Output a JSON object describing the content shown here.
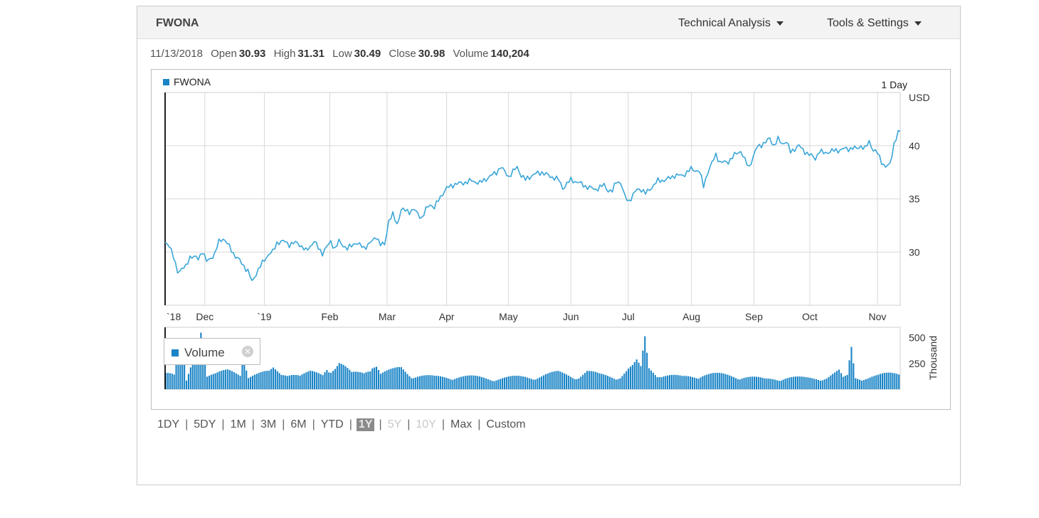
{
  "header": {
    "ticker": "FWONA",
    "menu_technical": "Technical Analysis",
    "menu_tools": "Tools & Settings"
  },
  "quote": {
    "date": "11/13/2018",
    "open_label": "Open",
    "open": "30.93",
    "high_label": "High",
    "high": "31.31",
    "low_label": "Low",
    "low": "30.49",
    "close_label": "Close",
    "close": "30.98",
    "volume_label": "Volume",
    "volume": "140,204"
  },
  "chart_data": {
    "type": "line",
    "legend": "FWONA",
    "interval_label": "1 Day",
    "y_unit_label": "USD",
    "ylim": [
      25,
      45
    ],
    "y_ticks": [
      "30",
      "35",
      "40"
    ],
    "x_tick_labels": [
      "`18",
      "Dec",
      "`19",
      "Feb",
      "Mar",
      "Apr",
      "May",
      "Jun",
      "Jul",
      "Aug",
      "Sep",
      "Oct",
      "Nov"
    ],
    "color": "#3aa6d8",
    "price_keypoints": [
      [
        0,
        30.9
      ],
      [
        2,
        30.7
      ],
      [
        4,
        29.5
      ],
      [
        6,
        28.2
      ],
      [
        10,
        28.6
      ],
      [
        12,
        29.6
      ],
      [
        16,
        29.4
      ],
      [
        18,
        30.1
      ],
      [
        20,
        29.1
      ],
      [
        24,
        29.8
      ],
      [
        26,
        31.0
      ],
      [
        28,
        31.3
      ],
      [
        30,
        30.8
      ],
      [
        34,
        29.6
      ],
      [
        36,
        29.2
      ],
      [
        40,
        28.2
      ],
      [
        42,
        27.2
      ],
      [
        44,
        28.0
      ],
      [
        48,
        29.3
      ],
      [
        50,
        29.8
      ],
      [
        52,
        30.0
      ],
      [
        54,
        30.9
      ],
      [
        58,
        31.0
      ],
      [
        60,
        30.7
      ],
      [
        64,
        30.9
      ],
      [
        68,
        30.1
      ],
      [
        72,
        31.0
      ],
      [
        74,
        30.4
      ],
      [
        76,
        29.9
      ],
      [
        80,
        31.0
      ],
      [
        82,
        30.3
      ],
      [
        84,
        31.0
      ],
      [
        88,
        30.3
      ],
      [
        92,
        30.9
      ],
      [
        96,
        30.4
      ],
      [
        100,
        31.0
      ],
      [
        102,
        31.5
      ],
      [
        104,
        30.7
      ],
      [
        106,
        30.7
      ],
      [
        108,
        33.0
      ],
      [
        110,
        33.5
      ],
      [
        112,
        32.6
      ],
      [
        114,
        34.0
      ],
      [
        118,
        33.8
      ],
      [
        120,
        34.0
      ],
      [
        124,
        33.2
      ],
      [
        126,
        34.0
      ],
      [
        128,
        34.5
      ],
      [
        130,
        34.2
      ],
      [
        134,
        35.5
      ],
      [
        136,
        36.0
      ],
      [
        140,
        36.4
      ],
      [
        144,
        36.5
      ],
      [
        148,
        36.7
      ],
      [
        152,
        36.5
      ],
      [
        156,
        37.0
      ],
      [
        160,
        37.5
      ],
      [
        162,
        38.0
      ],
      [
        166,
        37.1
      ],
      [
        170,
        38.0
      ],
      [
        172,
        37.2
      ],
      [
        174,
        36.8
      ],
      [
        178,
        37.3
      ],
      [
        182,
        37.5
      ],
      [
        186,
        37.1
      ],
      [
        188,
        37.0
      ],
      [
        190,
        36.8
      ],
      [
        192,
        36.0
      ],
      [
        196,
        36.8
      ],
      [
        200,
        36.5
      ],
      [
        204,
        36.1
      ],
      [
        206,
        36.0
      ],
      [
        208,
        35.9
      ],
      [
        212,
        36.3
      ],
      [
        214,
        35.8
      ],
      [
        216,
        35.7
      ],
      [
        218,
        36.7
      ],
      [
        220,
        36.5
      ],
      [
        222,
        35.2
      ],
      [
        224,
        34.8
      ],
      [
        228,
        35.9
      ],
      [
        230,
        35.9
      ],
      [
        232,
        35.5
      ],
      [
        236,
        36.3
      ],
      [
        238,
        36.7
      ],
      [
        242,
        36.8
      ],
      [
        246,
        37.2
      ],
      [
        250,
        37.2
      ],
      [
        254,
        37.8
      ],
      [
        258,
        37.6
      ],
      [
        260,
        36.2
      ],
      [
        262,
        37.5
      ],
      [
        264,
        38.3
      ],
      [
        266,
        39.2
      ],
      [
        268,
        38.4
      ],
      [
        272,
        38.5
      ],
      [
        276,
        39.3
      ],
      [
        278,
        39.5
      ],
      [
        280,
        38.6
      ],
      [
        282,
        38.0
      ],
      [
        286,
        39.9
      ],
      [
        290,
        40.3
      ],
      [
        292,
        40.7
      ],
      [
        294,
        40.0
      ],
      [
        296,
        40.6
      ],
      [
        298,
        40.2
      ],
      [
        300,
        40.4
      ],
      [
        302,
        39.4
      ],
      [
        306,
        40.0
      ],
      [
        308,
        39.6
      ],
      [
        310,
        39.3
      ],
      [
        314,
        38.8
      ],
      [
        316,
        39.5
      ],
      [
        318,
        39.3
      ],
      [
        322,
        39.5
      ],
      [
        326,
        39.6
      ],
      [
        328,
        39.7
      ],
      [
        330,
        39.7
      ],
      [
        332,
        39.8
      ],
      [
        334,
        39.7
      ],
      [
        336,
        40.0
      ],
      [
        338,
        39.7
      ],
      [
        340,
        40.4
      ],
      [
        342,
        39.6
      ],
      [
        344,
        39.3
      ],
      [
        346,
        38.5
      ],
      [
        348,
        38.0
      ],
      [
        350,
        38.2
      ],
      [
        352,
        40.2
      ],
      [
        354,
        41.2
      ],
      [
        355,
        41.3
      ]
    ],
    "volume": {
      "label": "Volume",
      "unit_label": "Thousand",
      "y_ticks": [
        "250",
        "500"
      ],
      "ylim": [
        0,
        600
      ],
      "color": "#1a84c6",
      "keypoints": [
        [
          0,
          210
        ],
        [
          4,
          140
        ],
        [
          5,
          290
        ],
        [
          8,
          420
        ],
        [
          10,
          70
        ],
        [
          12,
          180
        ],
        [
          14,
          310
        ],
        [
          16,
          400
        ],
        [
          17,
          580
        ],
        [
          20,
          160
        ],
        [
          24,
          150
        ],
        [
          30,
          160
        ],
        [
          36,
          130
        ],
        [
          37,
          400
        ],
        [
          40,
          140
        ],
        [
          50,
          150
        ],
        [
          52,
          180
        ],
        [
          56,
          140
        ],
        [
          60,
          170
        ],
        [
          65,
          120
        ],
        [
          70,
          150
        ],
        [
          76,
          140
        ],
        [
          78,
          220
        ],
        [
          80,
          200
        ],
        [
          82,
          210
        ],
        [
          84,
          240
        ],
        [
          90,
          140
        ],
        [
          96,
          160
        ],
        [
          100,
          250
        ],
        [
          102,
          230
        ],
        [
          104,
          140
        ],
        [
          110,
          170
        ],
        [
          114,
          200
        ],
        [
          120,
          130
        ],
        [
          130,
          110
        ],
        [
          140,
          120
        ],
        [
          150,
          110
        ],
        [
          160,
          100
        ],
        [
          170,
          110
        ],
        [
          180,
          120
        ],
        [
          190,
          150
        ],
        [
          200,
          120
        ],
        [
          204,
          160
        ],
        [
          210,
          130
        ],
        [
          220,
          120
        ],
        [
          224,
          180
        ],
        [
          226,
          200
        ],
        [
          228,
          240
        ],
        [
          230,
          190
        ],
        [
          232,
          460
        ],
        [
          234,
          200
        ],
        [
          236,
          180
        ],
        [
          240,
          130
        ],
        [
          250,
          110
        ],
        [
          260,
          140
        ],
        [
          270,
          130
        ],
        [
          280,
          120
        ],
        [
          290,
          90
        ],
        [
          300,
          110
        ],
        [
          310,
          100
        ],
        [
          320,
          110
        ],
        [
          326,
          160
        ],
        [
          328,
          100
        ],
        [
          330,
          120
        ],
        [
          332,
          380
        ],
        [
          334,
          110
        ],
        [
          340,
          110
        ],
        [
          345,
          120
        ],
        [
          350,
          140
        ],
        [
          355,
          160
        ]
      ]
    }
  },
  "periods": [
    {
      "label": "1DY",
      "state": "normal"
    },
    {
      "label": "5DY",
      "state": "normal"
    },
    {
      "label": "1M",
      "state": "normal"
    },
    {
      "label": "3M",
      "state": "normal"
    },
    {
      "label": "6M",
      "state": "normal"
    },
    {
      "label": "YTD",
      "state": "normal"
    },
    {
      "label": "1Y",
      "state": "active"
    },
    {
      "label": "5Y",
      "state": "disabled"
    },
    {
      "label": "10Y",
      "state": "disabled"
    },
    {
      "label": "Max",
      "state": "normal"
    },
    {
      "label": "Custom",
      "state": "normal"
    }
  ],
  "period_separator": "|"
}
